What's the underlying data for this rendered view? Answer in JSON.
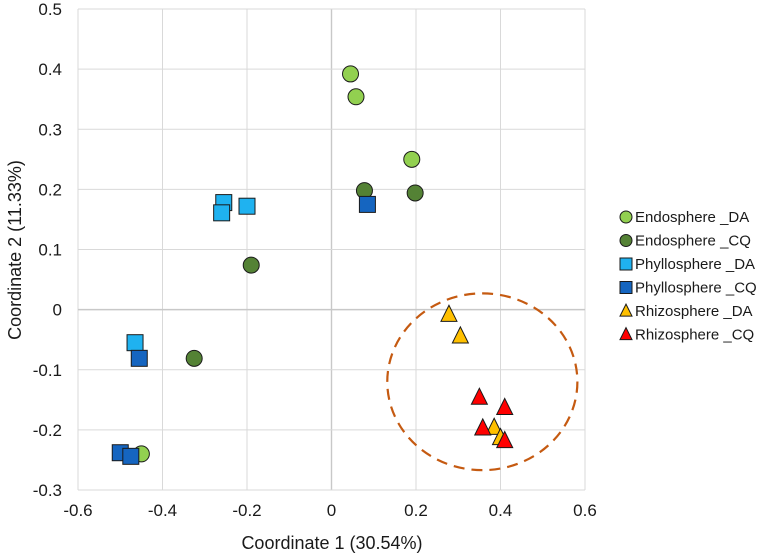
{
  "chart_data": {
    "type": "scatter",
    "title": "",
    "xlabel": "Coordinate 1 (30.54%)",
    "ylabel": "Coordinate 2 (11.33%)",
    "xlim": [
      -0.6,
      0.6
    ],
    "ylim": [
      -0.3,
      0.5
    ],
    "x_ticks": [
      -0.6,
      -0.4,
      -0.2,
      0,
      0.2,
      0.4,
      0.6
    ],
    "y_ticks": [
      -0.3,
      -0.2,
      -0.1,
      0,
      0.1,
      0.2,
      0.3,
      0.4,
      0.5
    ],
    "x_tick_labels": [
      "-0.6",
      "-0.4",
      "-0.2",
      "0",
      "0.2",
      "0.4",
      "0.6"
    ],
    "y_tick_labels": [
      "-0.3",
      "-0.2",
      "-0.1",
      "0",
      "0.1",
      "0.2",
      "0.3",
      "0.4",
      "0.5"
    ],
    "grid": true,
    "legend_position": "right",
    "series": [
      {
        "name": "Endosphere _DA",
        "marker": "circle",
        "color": "#92D050",
        "points": [
          [
            0.045,
            0.392
          ],
          [
            0.058,
            0.354
          ],
          [
            0.19,
            0.25
          ],
          [
            -0.45,
            -0.24
          ]
        ]
      },
      {
        "name": "Endosphere _CQ",
        "marker": "circle",
        "color": "#548235",
        "points": [
          [
            0.078,
            0.198
          ],
          [
            0.198,
            0.194
          ],
          [
            -0.19,
            0.074
          ],
          [
            -0.325,
            -0.081
          ]
        ]
      },
      {
        "name": "Phyllosphere _DA",
        "marker": "square",
        "color": "#1FB2F0",
        "points": [
          [
            -0.255,
            0.178
          ],
          [
            -0.2,
            0.172
          ],
          [
            -0.26,
            0.161
          ],
          [
            -0.465,
            -0.055
          ]
        ]
      },
      {
        "name": "Phyllosphere _CQ",
        "marker": "square",
        "color": "#1565C0",
        "points": [
          [
            0.085,
            0.175
          ],
          [
            -0.455,
            -0.081
          ],
          [
            -0.5,
            -0.238
          ],
          [
            -0.475,
            -0.244
          ]
        ]
      },
      {
        "name": "Rhizosphere _DA",
        "marker": "triangle",
        "color": "#FFC000",
        "points": [
          [
            0.278,
            -0.008
          ],
          [
            0.305,
            -0.044
          ],
          [
            0.385,
            -0.196
          ],
          [
            0.4,
            -0.213
          ]
        ]
      },
      {
        "name": "Rhizosphere _CQ",
        "marker": "triangle",
        "color": "#FF0000",
        "points": [
          [
            0.35,
            -0.146
          ],
          [
            0.41,
            -0.163
          ],
          [
            0.358,
            -0.197
          ],
          [
            0.41,
            -0.218
          ]
        ]
      }
    ],
    "annotations": [
      {
        "type": "dashed-ellipse",
        "color": "#C55A11",
        "center": [
          0.357,
          -0.12
        ],
        "radius_x": 0.225,
        "radius_y": 0.147
      }
    ]
  }
}
